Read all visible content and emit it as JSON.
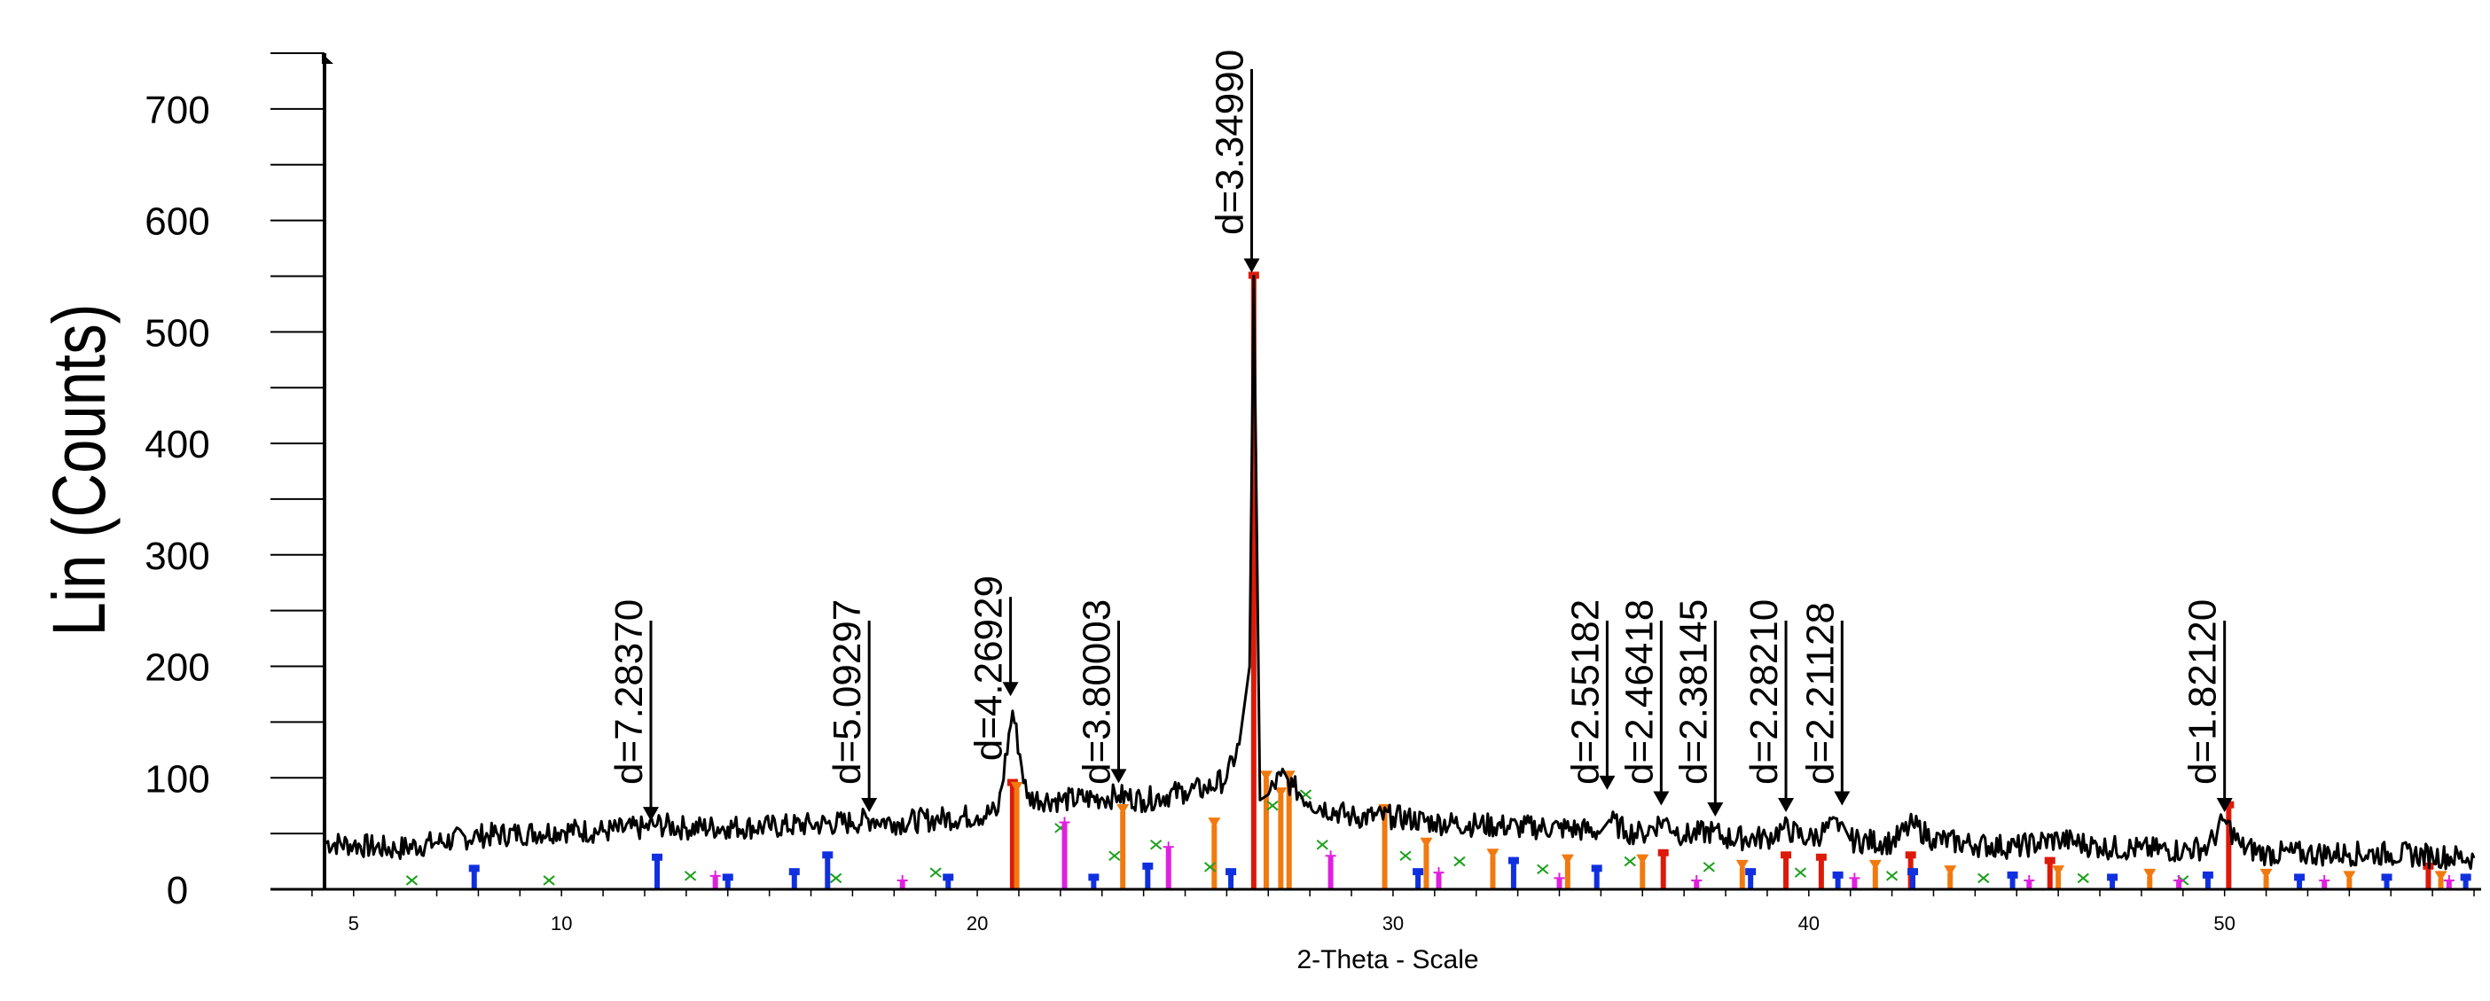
{
  "chart_data": {
    "type": "line",
    "title": "",
    "xlabel": "2-Theta - Scale",
    "ylabel": "Lin (Counts)",
    "xlim": [
      3,
      56
    ],
    "ylim": [
      0,
      750
    ],
    "x_ticks": [
      5,
      10,
      20,
      30,
      40,
      50
    ],
    "y_ticks": [
      0,
      100,
      200,
      300,
      400,
      500,
      600,
      700
    ],
    "grid": false,
    "legend": "none",
    "series": [
      {
        "color": "#000000",
        "x": [
          4.3,
          5,
          6,
          7,
          8,
          9,
          10,
          11,
          12,
          12.3,
          13,
          14,
          15,
          16,
          17,
          17.5,
          18,
          19,
          20,
          20.5,
          20.85,
          21.2,
          22,
          23,
          23.4,
          24,
          25,
          25.5,
          26,
          26.3,
          26.55,
          26.65,
          26.8,
          27,
          27.3,
          27.6,
          28,
          29,
          30,
          31,
          32,
          33,
          34,
          35,
          35.2,
          35.6,
          36,
          36.5,
          37,
          37.7,
          38,
          39,
          39.4,
          40,
          40.8,
          41,
          42,
          42.5,
          43,
          44,
          45,
          46,
          47,
          48,
          49,
          49.6,
          50,
          50.4,
          51,
          52,
          53,
          54,
          55,
          56
        ],
        "y": [
          42,
          40,
          36,
          42,
          48,
          50,
          53,
          52,
          55,
          58,
          55,
          56,
          56,
          58,
          60,
          63,
          60,
          63,
          66,
          70,
          160,
          82,
          80,
          82,
          84,
          80,
          88,
          90,
          100,
          130,
          200,
          550,
          80,
          85,
          102,
          92,
          78,
          65,
          65,
          60,
          58,
          56,
          55,
          52,
          62,
          52,
          50,
          62,
          48,
          52,
          46,
          46,
          55,
          45,
          60,
          44,
          42,
          58,
          45,
          40,
          38,
          45,
          38,
          36,
          35,
          38,
          62,
          38,
          32,
          32,
          32,
          32,
          30,
          28
        ]
      }
    ],
    "peak_markers": [
      {
        "x": 12.15,
        "y": 58,
        "label": "d=7.28370"
      },
      {
        "x": 17.4,
        "y": 66,
        "label": "d=5.09297"
      },
      {
        "x": 20.8,
        "y": 170,
        "label": "d=4.26929"
      },
      {
        "x": 23.4,
        "y": 92,
        "label": "d=3.80003"
      },
      {
        "x": 26.6,
        "y": 550,
        "label": "d=3.34990"
      },
      {
        "x": 35.15,
        "y": 86,
        "label": "d=2.55182"
      },
      {
        "x": 36.45,
        "y": 72,
        "label": "d=2.46418"
      },
      {
        "x": 37.75,
        "y": 62,
        "label": "d=2.38145"
      },
      {
        "x": 39.45,
        "y": 66,
        "label": "d=2.28210"
      },
      {
        "x": 40.8,
        "y": 72,
        "label": "d=2.21128"
      },
      {
        "x": 50.0,
        "y": 66,
        "label": "d=1.82120"
      }
    ],
    "reference_phases": [
      {
        "color": "#dd1a0a",
        "marker": "square",
        "x": [
          20.85,
          26.65,
          36.5,
          39.45,
          40.3,
          42.45,
          45.8,
          50.1,
          54.9
        ],
        "y": [
          95,
          550,
          32,
          30,
          28,
          30,
          25,
          75,
          20
        ]
      },
      {
        "color": "#f07a10",
        "marker": "triangle",
        "x": [
          20.95,
          23.5,
          25.7,
          26.95,
          27.3,
          27.5,
          29.8,
          30.8,
          32.4,
          34.2,
          36.0,
          38.4,
          41.6,
          43.4,
          46.0,
          48.2,
          51.0,
          53.0,
          55.2
        ],
        "y": [
          90,
          70,
          58,
          100,
          85,
          100,
          70,
          40,
          30,
          25,
          25,
          20,
          20,
          15,
          15,
          12,
          12,
          10,
          10
        ]
      },
      {
        "color": "#1aa01a",
        "marker": "x",
        "x": [
          6.4,
          9.7,
          13.1,
          16.6,
          19.0,
          22.0,
          23.3,
          24.3,
          25.6,
          27.1,
          27.9,
          28.3,
          30.3,
          31.6,
          33.6,
          35.7,
          37.6,
          39.8,
          42.0,
          44.2,
          46.6,
          49.0
        ],
        "y": [
          8,
          8,
          12,
          10,
          15,
          55,
          30,
          40,
          20,
          75,
          85,
          40,
          30,
          25,
          18,
          25,
          20,
          15,
          12,
          10,
          10,
          8
        ]
      },
      {
        "color": "#1030e0",
        "marker": "square",
        "x": [
          7.9,
          12.3,
          14.0,
          15.6,
          16.4,
          19.3,
          22.8,
          24.1,
          26.1,
          30.6,
          32.9,
          34.9,
          38.6,
          40.7,
          42.5,
          44.9,
          47.3,
          49.6,
          51.8,
          53.9,
          55.8
        ],
        "y": [
          18,
          28,
          10,
          15,
          30,
          10,
          10,
          20,
          15,
          15,
          25,
          18,
          15,
          12,
          15,
          12,
          10,
          12,
          10,
          10,
          10
        ]
      },
      {
        "color": "#e020e0",
        "marker": "plus",
        "x": [
          13.7,
          18.2,
          22.1,
          24.6,
          28.5,
          31.1,
          34.0,
          37.3,
          41.1,
          45.3,
          48.9,
          52.4,
          55.4
        ],
        "y": [
          12,
          8,
          60,
          38,
          30,
          15,
          10,
          8,
          10,
          8,
          8,
          8,
          8
        ]
      }
    ]
  }
}
